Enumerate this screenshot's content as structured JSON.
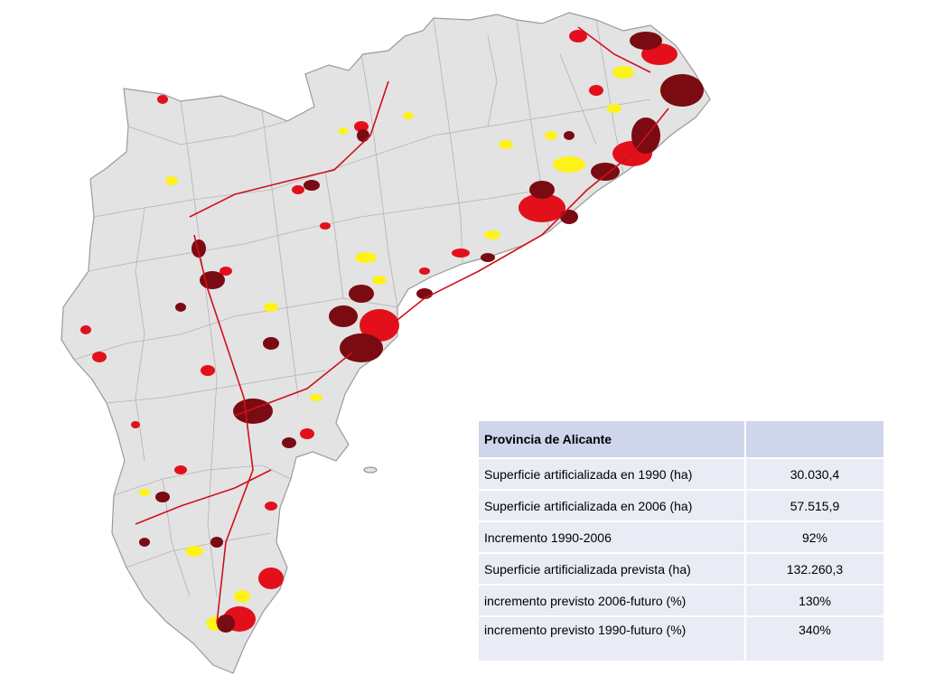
{
  "map": {
    "region": "Provincia de Alicante",
    "legend_colors": {
      "land": "#e3e3e3",
      "boundaries": "#b3b3b3",
      "urban_1990": "#7a0b12",
      "urban_2006": "#e3101c",
      "urban_planned": "#fff21a"
    }
  },
  "table": {
    "title": "Provincia de Alicante",
    "rows": [
      {
        "label": "Superficie artificializada en 1990 (ha)",
        "value": "30.030,4"
      },
      {
        "label": "Superficie artificializada en 2006 (ha)",
        "value": "57.515,9"
      },
      {
        "label": "Incremento 1990-2006",
        "value": "92%"
      },
      {
        "label": "Superficie artificializada prevista  (ha)",
        "value": "132.260,3"
      },
      {
        "label": "incremento previsto 2006-futuro (%)",
        "value": "130%"
      },
      {
        "label": "incremento previsto 1990-futuro (%)",
        "value": "340%"
      }
    ]
  }
}
